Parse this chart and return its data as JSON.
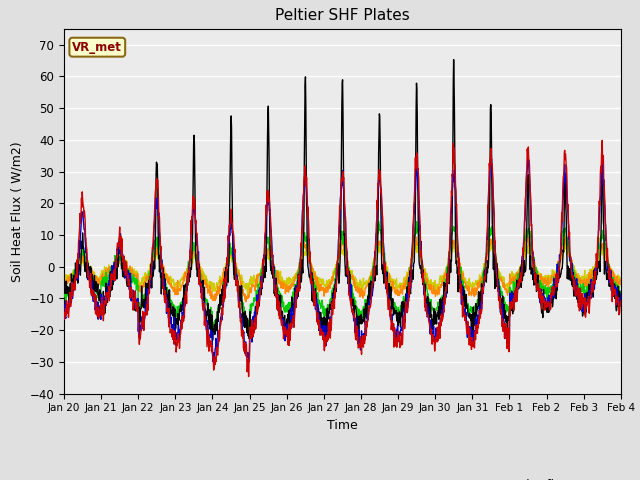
{
  "title": "Peltier SHF Plates",
  "xlabel": "Time",
  "ylabel": "Soil Heat Flux ( W/m2)",
  "ylim": [
    -40,
    75
  ],
  "yticks": [
    -40,
    -30,
    -20,
    -10,
    0,
    10,
    20,
    30,
    40,
    50,
    60,
    70
  ],
  "background_color": "#e0e0e0",
  "plot_bg_color": "#d8d8d8",
  "annotation_text": "VR_met",
  "annotation_bg": "#ffffcc",
  "annotation_border": "#8b6914",
  "annotation_color": "#8b0000",
  "series_colors": {
    "pSHF 1": "#cc0000",
    "pSHF 2": "#0000cc",
    "pSHF 3": "#00cc00",
    "pSHF 4": "#ff8800",
    "pSHF 5": "#cccc00",
    "Hukseflux": "#000000"
  },
  "tick_labels": [
    "Jan 20",
    "Jan 21",
    "Jan 22",
    "Jan 23",
    "Jan 24",
    "Jan 25",
    "Jan 26",
    "Jan 27",
    "Jan 28",
    "Jan 29",
    "Jan 30",
    "Jan 31",
    "Feb 1",
    "Feb 2",
    "Feb 3",
    "Feb 4"
  ]
}
